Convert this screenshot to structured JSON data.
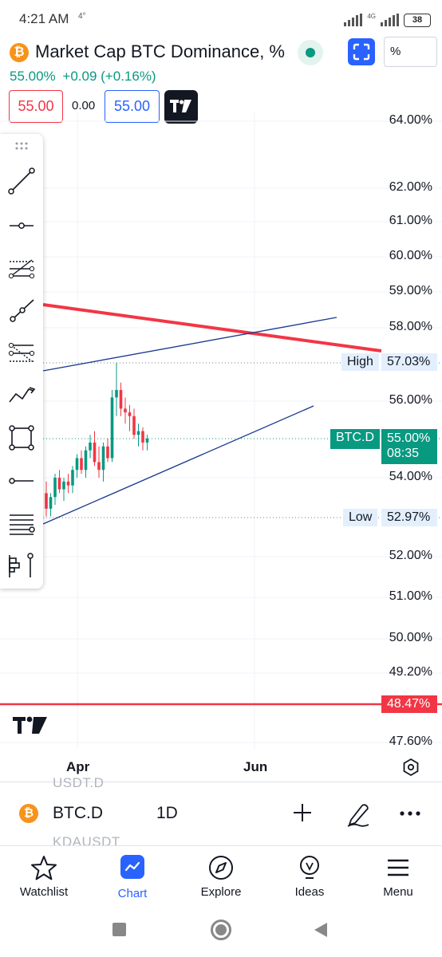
{
  "status_bar": {
    "time": "4:21 AM",
    "small_icon": "4°",
    "network": "4G",
    "battery": "38"
  },
  "header": {
    "coin_glyph": "₿",
    "title": "Market Cap BTC Dominance, %",
    "unit_button": "%",
    "price": "55.00%",
    "change": "+0.09 (+0.16%)",
    "sell_price": "55.00",
    "spread": "0.00",
    "buy_price": "55.00"
  },
  "chart_data": {
    "type": "candlestick",
    "symbol": "BTC.D",
    "y_axis_ticks": [
      "64.00%",
      "62.00%",
      "61.00%",
      "60.00%",
      "59.00%",
      "58.00%",
      "56.00%",
      "54.00%",
      "52.00%",
      "51.00%",
      "50.00%",
      "49.20%",
      "47.60%"
    ],
    "x_axis_ticks": [
      "Apr",
      "Jun"
    ],
    "high": {
      "label": "High",
      "value": "57.03%"
    },
    "low": {
      "label": "Low",
      "value": "52.97%"
    },
    "last_price": {
      "symbol": "BTC.D",
      "value": "55.00%",
      "countdown": "08:35"
    },
    "horizontal_line": {
      "value": "48.47%",
      "color": "#f23645"
    },
    "candles": [
      {
        "o": 53.6,
        "h": 53.9,
        "l": 53.0,
        "c": 53.2
      },
      {
        "o": 53.2,
        "h": 53.6,
        "l": 53.0,
        "c": 53.5
      },
      {
        "o": 53.5,
        "h": 54.1,
        "l": 53.3,
        "c": 54.0
      },
      {
        "o": 54.0,
        "h": 54.2,
        "l": 53.6,
        "c": 53.7
      },
      {
        "o": 53.7,
        "h": 54.0,
        "l": 53.4,
        "c": 53.9
      },
      {
        "o": 53.9,
        "h": 54.1,
        "l": 53.6,
        "c": 53.8
      },
      {
        "o": 53.8,
        "h": 54.3,
        "l": 53.6,
        "c": 54.2
      },
      {
        "o": 54.2,
        "h": 54.6,
        "l": 54.0,
        "c": 54.5
      },
      {
        "o": 54.5,
        "h": 54.7,
        "l": 54.1,
        "c": 54.2
      },
      {
        "o": 54.2,
        "h": 54.8,
        "l": 54.0,
        "c": 54.7
      },
      {
        "o": 54.7,
        "h": 55.1,
        "l": 54.5,
        "c": 54.9
      },
      {
        "o": 54.9,
        "h": 55.2,
        "l": 54.3,
        "c": 54.4
      },
      {
        "o": 54.4,
        "h": 54.8,
        "l": 54.0,
        "c": 54.2
      },
      {
        "o": 54.2,
        "h": 54.9,
        "l": 53.9,
        "c": 54.8
      },
      {
        "o": 54.8,
        "h": 55.0,
        "l": 54.4,
        "c": 54.5
      },
      {
        "o": 54.5,
        "h": 56.3,
        "l": 54.4,
        "c": 56.1
      },
      {
        "o": 56.1,
        "h": 57.03,
        "l": 55.6,
        "c": 56.3
      },
      {
        "o": 56.3,
        "h": 56.5,
        "l": 55.6,
        "c": 55.8
      },
      {
        "o": 55.8,
        "h": 56.1,
        "l": 55.4,
        "c": 55.7
      },
      {
        "o": 55.7,
        "h": 55.9,
        "l": 55.2,
        "c": 55.6
      },
      {
        "o": 55.6,
        "h": 55.8,
        "l": 55.0,
        "c": 55.1
      },
      {
        "o": 55.1,
        "h": 55.4,
        "l": 54.8,
        "c": 55.2
      },
      {
        "o": 55.2,
        "h": 55.3,
        "l": 54.7,
        "c": 54.9
      },
      {
        "o": 54.9,
        "h": 55.1,
        "l": 54.7,
        "c": 55.0
      }
    ],
    "trend_lines": [
      {
        "color": "#f23645",
        "kind": "resistance"
      },
      {
        "color": "#1a3a8f",
        "kind": "upper-channel"
      },
      {
        "color": "#1a3a8f",
        "kind": "lower-channel"
      }
    ],
    "colors": {
      "up": "#089981",
      "down": "#f23645"
    }
  },
  "symbol_bar": {
    "ghost_top": "USDT.D",
    "ghost_bottom": "KDAUSDT",
    "symbol": "BTC.D",
    "interval": "1D"
  },
  "bottom_nav": [
    {
      "label": "Watchlist",
      "icon": "star-icon"
    },
    {
      "label": "Chart",
      "icon": "chart-icon"
    },
    {
      "label": "Explore",
      "icon": "compass-icon"
    },
    {
      "label": "Ideas",
      "icon": "lightbulb-icon"
    },
    {
      "label": "Menu",
      "icon": "menu-icon"
    }
  ]
}
